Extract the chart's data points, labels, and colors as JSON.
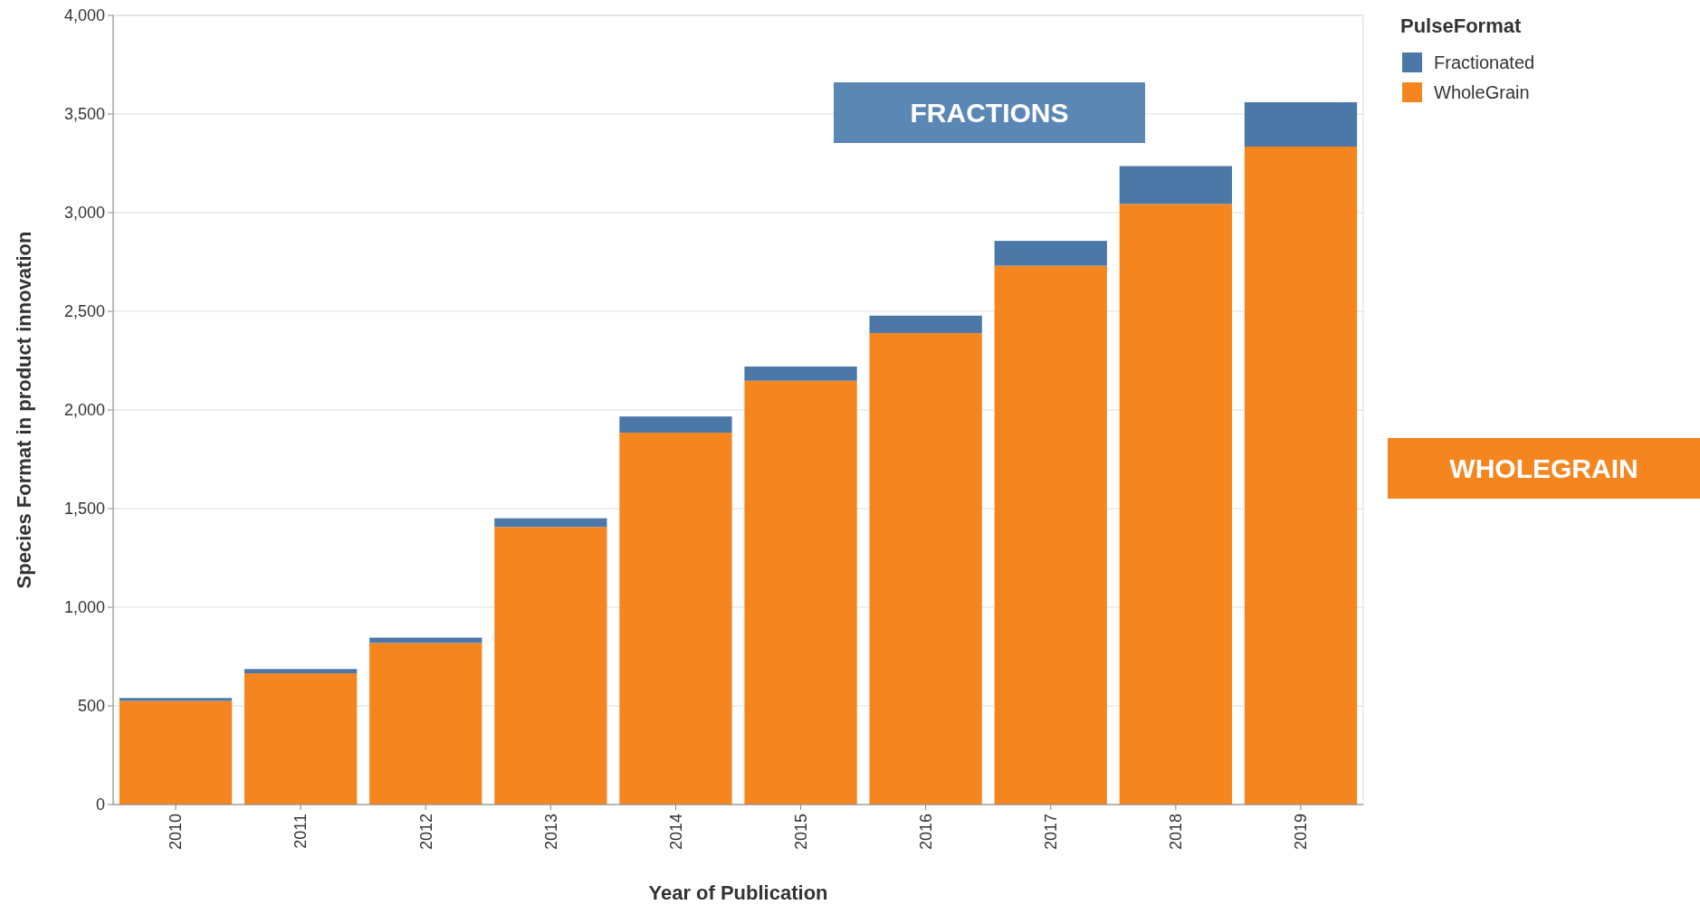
{
  "chart_data": {
    "type": "bar",
    "stacked": true,
    "xlabel": "Year of Publication",
    "ylabel": "Species Format in product innovation",
    "legend_title": "PulseFormat",
    "legend": "top right",
    "grid": "y",
    "categories": [
      "2010",
      "2011",
      "2012",
      "2013",
      "2014",
      "2015",
      "2016",
      "2017",
      "2018",
      "2019"
    ],
    "series": [
      {
        "name": "WholeGrain",
        "color": "#f5861f",
        "values": [
          525,
          665,
          819,
          1407,
          1885,
          2148,
          2390,
          2731,
          3044,
          3335
        ]
      },
      {
        "name": "Fractionated",
        "color": "#4c78a8",
        "values": [
          15,
          22,
          27,
          44,
          82,
          72,
          88,
          126,
          192,
          225
        ]
      }
    ],
    "ylim": [
      0,
      4000
    ],
    "yticks": [
      0,
      500,
      {
        "value": 1000,
        "label": "1,000"
      },
      {
        "value": 1500,
        "label": "1,500"
      },
      {
        "value": 2000,
        "label": "2,000"
      },
      {
        "value": 2500,
        "label": "2,500"
      },
      {
        "value": 3000,
        "label": "3,000"
      },
      {
        "value": 3500,
        "label": "3,500"
      },
      {
        "value": 4000,
        "label": "4,000"
      }
    ],
    "annotations": [
      "FRACTIONS",
      "WHOLEGRAIN"
    ]
  }
}
